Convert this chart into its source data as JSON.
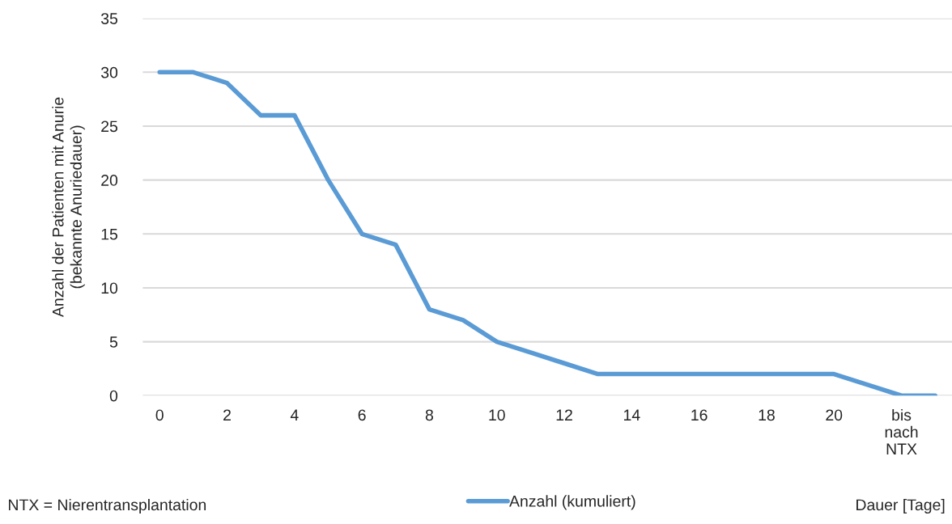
{
  "chart_data": {
    "type": "line",
    "ylabel": "Anzahl der Patienten mit Anurie\n(bekannte Anuriedauer)",
    "xlabel": "Dauer [Tage]",
    "annotations": [
      "NTX = Nierentransplantation"
    ],
    "categories": [
      "0",
      null,
      "2",
      null,
      "4",
      null,
      "6",
      null,
      "8",
      null,
      "10",
      null,
      "12",
      null,
      "14",
      null,
      "16",
      null,
      "18",
      null,
      "20",
      null,
      "bis\nnach\nNTX",
      null
    ],
    "series": [
      {
        "name": "Anzahl (kumuliert)",
        "color": "#5b9bd5",
        "values": [
          30,
          30,
          29,
          26,
          26,
          20,
          15,
          14,
          8,
          7,
          5,
          4,
          3,
          2,
          2,
          2,
          2,
          2,
          2,
          2,
          2,
          1,
          0,
          0
        ]
      }
    ],
    "ylim": [
      0,
      35
    ],
    "yticks": [
      0,
      5,
      10,
      15,
      20,
      25,
      30,
      35
    ],
    "grid": "y",
    "legend": "bottom",
    "marker": "none",
    "line_style": "solid"
  }
}
